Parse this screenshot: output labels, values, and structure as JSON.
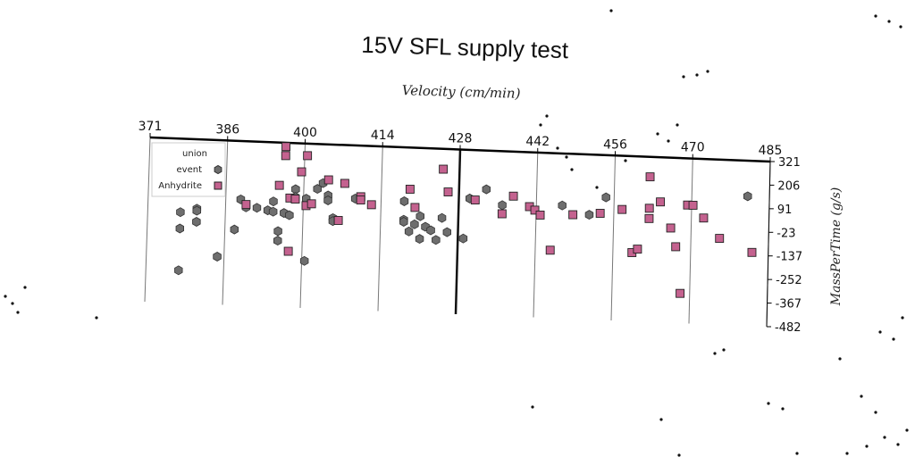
{
  "chart_data": {
    "type": "scatter",
    "title": "15V SFL supply test",
    "xlabel": "Velocity (cm/min)",
    "ylabel": "MassPerTime (g/s)",
    "xlim": [
      371,
      485
    ],
    "ylim": [
      -482,
      321
    ],
    "x_ticks": [
      "371",
      "386",
      "400",
      "414",
      "428",
      "442",
      "456",
      "470",
      "485"
    ],
    "y_ticks": [
      "321",
      "206",
      "91",
      "-23",
      "-137",
      "-252",
      "-367",
      "-482"
    ],
    "legend": {
      "title": "union",
      "position": "top-left"
    },
    "grid": true,
    "series": [
      {
        "name": "event",
        "marker": "hexagon",
        "color": "#6e6e6e",
        "points": [
          [
            377,
            -38
          ],
          [
            377,
            -118
          ],
          [
            377,
            -322
          ],
          [
            380,
            -18
          ],
          [
            380,
            -28
          ],
          [
            380,
            -82
          ],
          [
            384,
            -248
          ],
          [
            387,
            -112
          ],
          [
            388,
            36
          ],
          [
            389,
            -2
          ],
          [
            391,
            -2
          ],
          [
            393,
            -12
          ],
          [
            394,
            32
          ],
          [
            394,
            -18
          ],
          [
            395,
            -112
          ],
          [
            395,
            -158
          ],
          [
            396,
            -22
          ],
          [
            397,
            -32
          ],
          [
            398,
            96
          ],
          [
            398,
            58
          ],
          [
            400,
            -252
          ],
          [
            400,
            52
          ],
          [
            402,
            102
          ],
          [
            403,
            131
          ],
          [
            404,
            72
          ],
          [
            404,
            48
          ],
          [
            405,
            -38
          ],
          [
            405,
            -52
          ],
          [
            409,
            62
          ],
          [
            418,
            58
          ],
          [
            418,
            -32
          ],
          [
            418,
            -42
          ],
          [
            419,
            -88
          ],
          [
            420,
            -52
          ],
          [
            421,
            -12
          ],
          [
            421,
            -122
          ],
          [
            422,
            -62
          ],
          [
            423,
            -78
          ],
          [
            424,
            -124
          ],
          [
            425,
            -16
          ],
          [
            426,
            -84
          ],
          [
            429,
            -112
          ],
          [
            430,
            84
          ],
          [
            433,
            132
          ],
          [
            436,
            58
          ],
          [
            447,
            68
          ],
          [
            452,
            28
          ],
          [
            455,
            116
          ],
          [
            481,
            148
          ]
        ]
      },
      {
        "name": "Anhydrite",
        "marker": "square",
        "color": "#c4628f",
        "points": [
          [
            389,
            12
          ],
          [
            395,
            112
          ],
          [
            396,
            302
          ],
          [
            396,
            258
          ],
          [
            397,
            52
          ],
          [
            397,
            -208
          ],
          [
            398,
            48
          ],
          [
            399,
            182
          ],
          [
            400,
            18
          ],
          [
            400,
            262
          ],
          [
            401,
            28
          ],
          [
            404,
            148
          ],
          [
            406,
            -48
          ],
          [
            407,
            134
          ],
          [
            410,
            72
          ],
          [
            410,
            56
          ],
          [
            412,
            35
          ],
          [
            419,
            118
          ],
          [
            420,
            30
          ],
          [
            425,
            222
          ],
          [
            426,
            112
          ],
          [
            431,
            78
          ],
          [
            436,
            16
          ],
          [
            438,
            104
          ],
          [
            441,
            56
          ],
          [
            442,
            40
          ],
          [
            443,
            17
          ],
          [
            445,
            -152
          ],
          [
            449,
            25
          ],
          [
            454,
            37
          ],
          [
            458,
            60
          ],
          [
            460,
            -148
          ],
          [
            461,
            -130
          ],
          [
            463,
            71
          ],
          [
            463,
            224
          ],
          [
            463,
            21
          ],
          [
            465,
            104
          ],
          [
            467,
            -21
          ],
          [
            468,
            -111
          ],
          [
            469,
            -337
          ],
          [
            470,
            94
          ],
          [
            471,
            94
          ],
          [
            473,
            34
          ],
          [
            476,
            -62
          ],
          [
            482,
            -124
          ]
        ]
      }
    ]
  }
}
